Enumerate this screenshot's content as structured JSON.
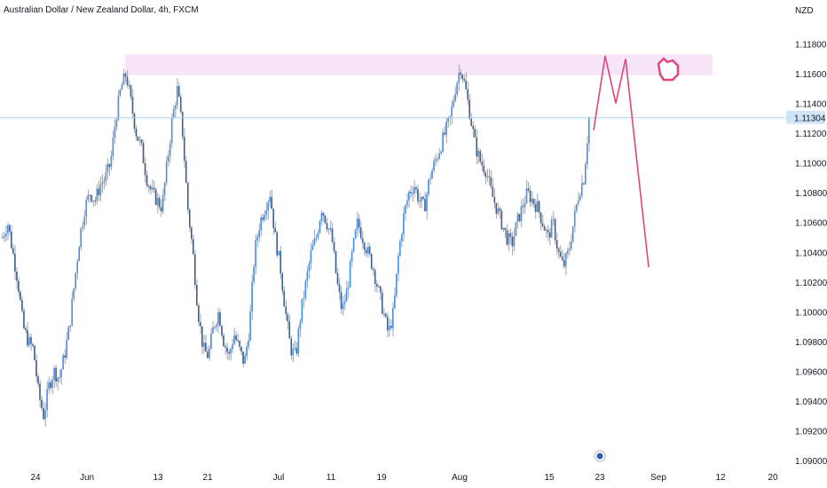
{
  "header": {
    "title": "Australian Dollar / New Zealand Dollar, 4h, FXCM"
  },
  "price_axis": {
    "currency": "NZD",
    "current_price_label": "1.11304"
  },
  "colors": {
    "up_candle": "#4a90e2",
    "down_candle": "#3f5f8a",
    "wick": "#9aa6b8",
    "zone_fill": "#f6e6f7",
    "projection": "#e0467c",
    "price_line": "#a9d4f2",
    "price_label_bg": "#d0e6f8",
    "axis_text": "#131722"
  },
  "chart_data": {
    "type": "candlestick",
    "title": "Australian Dollar / New Zealand Dollar, 4h, FXCM",
    "xlabel": "",
    "ylabel": "NZD",
    "ylim": [
      1.09,
      1.12
    ],
    "y_ticks": [
      "1.09000",
      "1.09200",
      "1.09400",
      "1.09600",
      "1.09800",
      "1.10000",
      "1.10200",
      "1.10400",
      "1.10600",
      "1.10800",
      "1.11000",
      "1.11200",
      "1.11400",
      "1.11600",
      "1.11800"
    ],
    "x_ticks": [
      "24",
      "Jun",
      "13",
      "21",
      "Jul",
      "11",
      "19",
      "Aug",
      "15",
      "23",
      "Sep",
      "12",
      "20"
    ],
    "current_price": 1.11304,
    "resistance_zone": [
      1.1159,
      1.1173
    ],
    "price_path": [
      1.105,
      1.106,
      1.104,
      1.102,
      1.099,
      1.098,
      1.0975,
      1.0945,
      1.093,
      1.095,
      1.096,
      1.0955,
      1.097,
      1.099,
      1.102,
      1.105,
      1.107,
      1.108,
      1.1075,
      1.1085,
      1.109,
      1.11,
      1.113,
      1.115,
      1.116,
      1.114,
      1.112,
      1.111,
      1.109,
      1.108,
      1.1075,
      1.107,
      1.11,
      1.113,
      1.115,
      1.112,
      1.107,
      1.104,
      1.1,
      1.0975,
      1.097,
      1.099,
      1.1,
      1.098,
      1.097,
      1.0985,
      1.0975,
      1.0965,
      1.099,
      1.104,
      1.106,
      1.107,
      1.108,
      1.105,
      1.103,
      1.1,
      1.0975,
      1.097,
      1.1,
      1.102,
      1.104,
      1.105,
      1.107,
      1.106,
      1.105,
      1.102,
      1.1,
      1.1015,
      1.104,
      1.106,
      1.105,
      1.104,
      1.103,
      1.1015,
      1.1,
      1.0985,
      1.1,
      1.104,
      1.1065,
      1.108,
      1.1085,
      1.1075,
      1.107,
      1.109,
      1.11,
      1.111,
      1.112,
      1.113,
      1.115,
      1.1165,
      1.115,
      1.113,
      1.111,
      1.11,
      1.1095,
      1.108,
      1.107,
      1.106,
      1.105,
      1.1045,
      1.106,
      1.107,
      1.108,
      1.1075,
      1.107,
      1.106,
      1.105,
      1.106,
      1.104,
      1.103,
      1.104,
      1.106,
      1.108,
      1.109,
      1.113
    ],
    "projection_path": [
      {
        "date": "Aug 22",
        "price": 1.1122
      },
      {
        "date": "Aug 24",
        "price": 1.1172
      },
      {
        "date": "Aug 26",
        "price": 1.114
      },
      {
        "date": "Aug 28",
        "price": 1.117
      },
      {
        "date": "Sep 3",
        "price": 1.103
      }
    ]
  }
}
